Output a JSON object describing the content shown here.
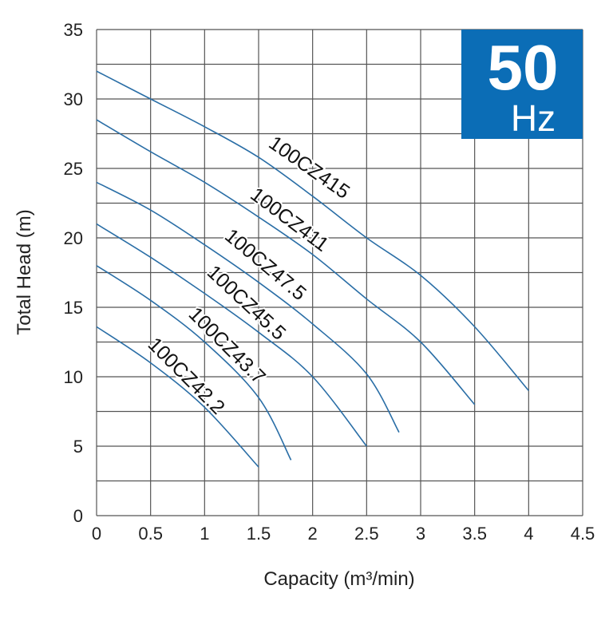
{
  "chart_data": {
    "type": "line",
    "xlabel": "Capacity (m³/min)",
    "ylabel": "Total Head (m)",
    "xlim": [
      0,
      4.5
    ],
    "ylim": [
      0,
      35
    ],
    "x_ticks": [
      "0",
      "0.5",
      "1",
      "1.5",
      "2",
      "2.5",
      "3",
      "3.5",
      "4",
      "4.5"
    ],
    "y_ticks": [
      "0",
      "5",
      "10",
      "15",
      "20",
      "25",
      "30",
      "35"
    ],
    "grid": true,
    "badge": {
      "big": "50",
      "small": "Hz",
      "color": "#0b6db6"
    },
    "line_color": "#2a6ea6",
    "series": [
      {
        "name": "100CZ415",
        "x": [
          0,
          0.5,
          1,
          1.5,
          2,
          2.5,
          3,
          3.5,
          4
        ],
        "y": [
          32,
          30,
          28,
          25.8,
          23,
          20,
          17.3,
          13.6,
          9
        ]
      },
      {
        "name": "100CZ411",
        "x": [
          0,
          0.5,
          1,
          1.5,
          2,
          2.5,
          3,
          3.5
        ],
        "y": [
          28.5,
          26.2,
          24,
          21.5,
          18.8,
          15.6,
          12.5,
          8
        ]
      },
      {
        "name": "100CZ47.5",
        "x": [
          0,
          0.5,
          1,
          1.5,
          2,
          2.5,
          2.8
        ],
        "y": [
          24,
          22,
          19.5,
          16.8,
          13.8,
          10.2,
          6
        ]
      },
      {
        "name": "100CZ45.5",
        "x": [
          0,
          0.5,
          1,
          1.5,
          2,
          2.5
        ],
        "y": [
          21,
          18.6,
          16,
          13.2,
          10,
          5
        ]
      },
      {
        "name": "100CZ43.7",
        "x": [
          0,
          0.5,
          1,
          1.5,
          1.8
        ],
        "y": [
          18,
          15.5,
          12.5,
          8.5,
          4
        ]
      },
      {
        "name": "100CZ42.2",
        "x": [
          0,
          0.5,
          1,
          1.5
        ],
        "y": [
          13.6,
          11,
          7.8,
          3.5
        ]
      }
    ]
  }
}
